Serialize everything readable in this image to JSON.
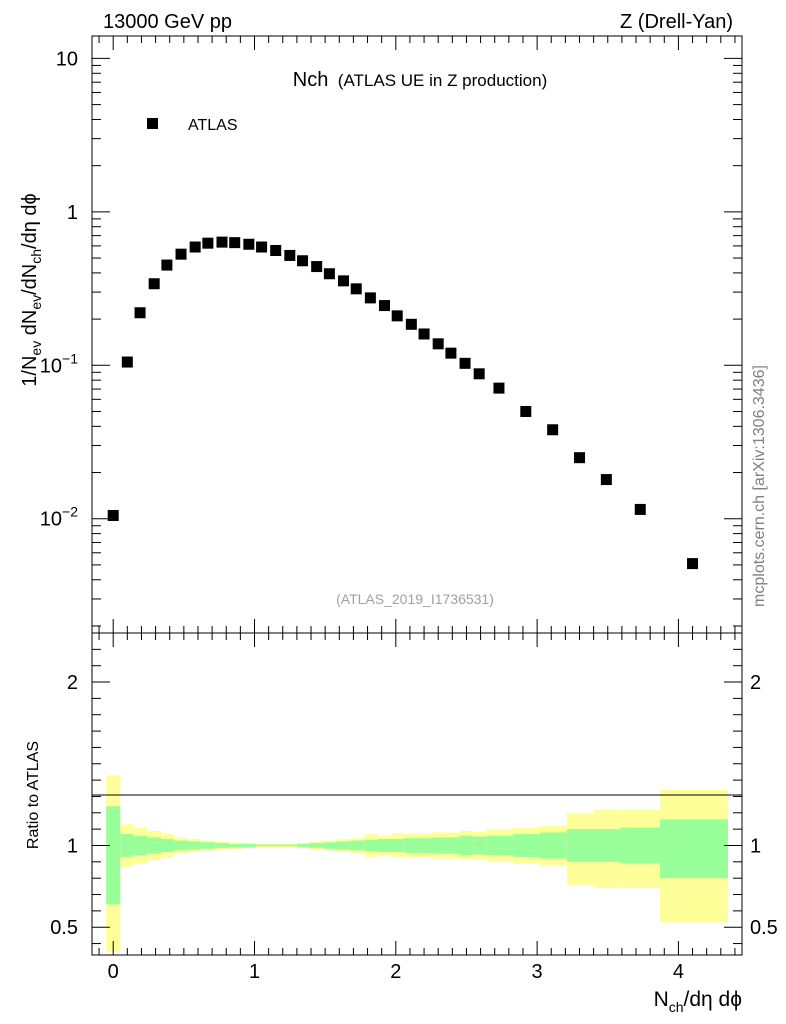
{
  "header": {
    "energy_label": "13000 GeV pp",
    "process_label": "Z (Drell-Yan)"
  },
  "side_label": "mcplots.cern.ch [arXiv:1306.3436]",
  "colors": {
    "outer_band": "#ffff99",
    "inner_band": "#99ff99",
    "marker": "#000000"
  },
  "chart_data": {
    "type": "scatter",
    "title": "Nch",
    "subtitle": "(ATLAS UE in Z production)",
    "analysis_id": "(ATLAS_2019_I1736531)",
    "xlabel": "N",
    "xlabel_sub": "ch",
    "xlabel_rest": "/dη dϕ",
    "ylabel": "1/N_ev dN_ev/dN_ch/dη dϕ",
    "yscale": "log",
    "ylim": [
      0.0018,
      14
    ],
    "xlim": [
      -0.15,
      4.45
    ],
    "legend": [
      {
        "name": "ATLAS",
        "marker": "square"
      }
    ],
    "x_ticks": [
      "0",
      "1",
      "2",
      "3",
      "4"
    ],
    "y_ticks": [
      {
        "value": 10,
        "base": "10",
        "exp": ""
      },
      {
        "value": 1,
        "base": "1",
        "exp": ""
      },
      {
        "value": 0.1,
        "base": "10",
        "exp": "−1"
      },
      {
        "value": 0.01,
        "base": "10",
        "exp": "−2"
      }
    ],
    "series": [
      {
        "name": "ATLAS",
        "x": [
          0.0,
          0.1,
          0.19,
          0.29,
          0.38,
          0.48,
          0.58,
          0.67,
          0.77,
          0.86,
          0.96,
          1.05,
          1.15,
          1.25,
          1.34,
          1.44,
          1.53,
          1.63,
          1.72,
          1.82,
          1.92,
          2.01,
          2.11,
          2.2,
          2.3,
          2.39,
          2.49,
          2.59,
          2.73,
          2.92,
          3.11,
          3.3,
          3.49,
          3.73,
          4.1
        ],
        "y": [
          0.0105,
          0.105,
          0.22,
          0.34,
          0.45,
          0.53,
          0.59,
          0.625,
          0.635,
          0.63,
          0.615,
          0.59,
          0.56,
          0.52,
          0.48,
          0.44,
          0.395,
          0.355,
          0.315,
          0.275,
          0.245,
          0.21,
          0.185,
          0.16,
          0.138,
          0.12,
          0.103,
          0.088,
          0.071,
          0.05,
          0.038,
          0.025,
          0.018,
          0.0115,
          0.0051
        ]
      }
    ],
    "ratio": {
      "ylabel": "Ratio to ATLAS",
      "ylim": [
        0.33,
        2.3
      ],
      "ticks": [
        "0.5",
        "1",
        "2"
      ],
      "bins": [
        [
          -0.05,
          0.05,
          0.64,
          1.24,
          0.35,
          1.43
        ],
        [
          0.05,
          0.14,
          0.93,
          1.07,
          0.87,
          1.13
        ],
        [
          0.14,
          0.24,
          0.94,
          1.06,
          0.89,
          1.11
        ],
        [
          0.24,
          0.34,
          0.95,
          1.05,
          0.91,
          1.09
        ],
        [
          0.34,
          0.43,
          0.96,
          1.04,
          0.93,
          1.07
        ],
        [
          0.43,
          0.53,
          0.97,
          1.03,
          0.95,
          1.05
        ],
        [
          0.53,
          0.62,
          0.975,
          1.025,
          0.96,
          1.04
        ],
        [
          0.62,
          0.72,
          0.98,
          1.02,
          0.97,
          1.03
        ],
        [
          0.72,
          0.82,
          0.985,
          1.015,
          0.975,
          1.025
        ],
        [
          0.82,
          0.91,
          0.99,
          1.01,
          0.98,
          1.02
        ],
        [
          0.91,
          1.01,
          0.99,
          1.01,
          0.985,
          1.015
        ],
        [
          1.01,
          1.1,
          0.995,
          1.005,
          0.99,
          1.01
        ],
        [
          1.1,
          1.2,
          0.995,
          1.005,
          0.99,
          1.01
        ],
        [
          1.2,
          1.3,
          0.995,
          1.005,
          0.99,
          1.01
        ],
        [
          1.3,
          1.39,
          0.99,
          1.01,
          0.985,
          1.015
        ],
        [
          1.39,
          1.49,
          0.985,
          1.015,
          0.975,
          1.025
        ],
        [
          1.49,
          1.58,
          0.98,
          1.02,
          0.97,
          1.03
        ],
        [
          1.58,
          1.68,
          0.975,
          1.025,
          0.96,
          1.04
        ],
        [
          1.68,
          1.78,
          0.97,
          1.03,
          0.955,
          1.045
        ],
        [
          1.78,
          1.87,
          0.965,
          1.035,
          0.93,
          1.07
        ],
        [
          1.87,
          1.97,
          0.96,
          1.04,
          0.94,
          1.06
        ],
        [
          1.97,
          2.06,
          0.96,
          1.04,
          0.925,
          1.075
        ],
        [
          2.06,
          2.16,
          0.955,
          1.045,
          0.93,
          1.07
        ],
        [
          2.16,
          2.26,
          0.955,
          1.045,
          0.925,
          1.075
        ],
        [
          2.26,
          2.35,
          0.95,
          1.05,
          0.92,
          1.08
        ],
        [
          2.35,
          2.45,
          0.95,
          1.05,
          0.92,
          1.08
        ],
        [
          2.45,
          2.54,
          0.94,
          1.06,
          0.91,
          1.09
        ],
        [
          2.54,
          2.64,
          0.945,
          1.055,
          0.915,
          1.085
        ],
        [
          2.64,
          2.83,
          0.94,
          1.06,
          0.9,
          1.1
        ],
        [
          2.83,
          3.02,
          0.93,
          1.07,
          0.89,
          1.11
        ],
        [
          3.02,
          3.21,
          0.92,
          1.08,
          0.88,
          1.12
        ],
        [
          3.21,
          3.4,
          0.9,
          1.1,
          0.76,
          1.2
        ],
        [
          3.4,
          3.59,
          0.9,
          1.1,
          0.74,
          1.22
        ],
        [
          3.59,
          3.87,
          0.89,
          1.11,
          0.74,
          1.22
        ],
        [
          3.87,
          4.35,
          0.8,
          1.16,
          0.53,
          1.34
        ]
      ]
    }
  }
}
